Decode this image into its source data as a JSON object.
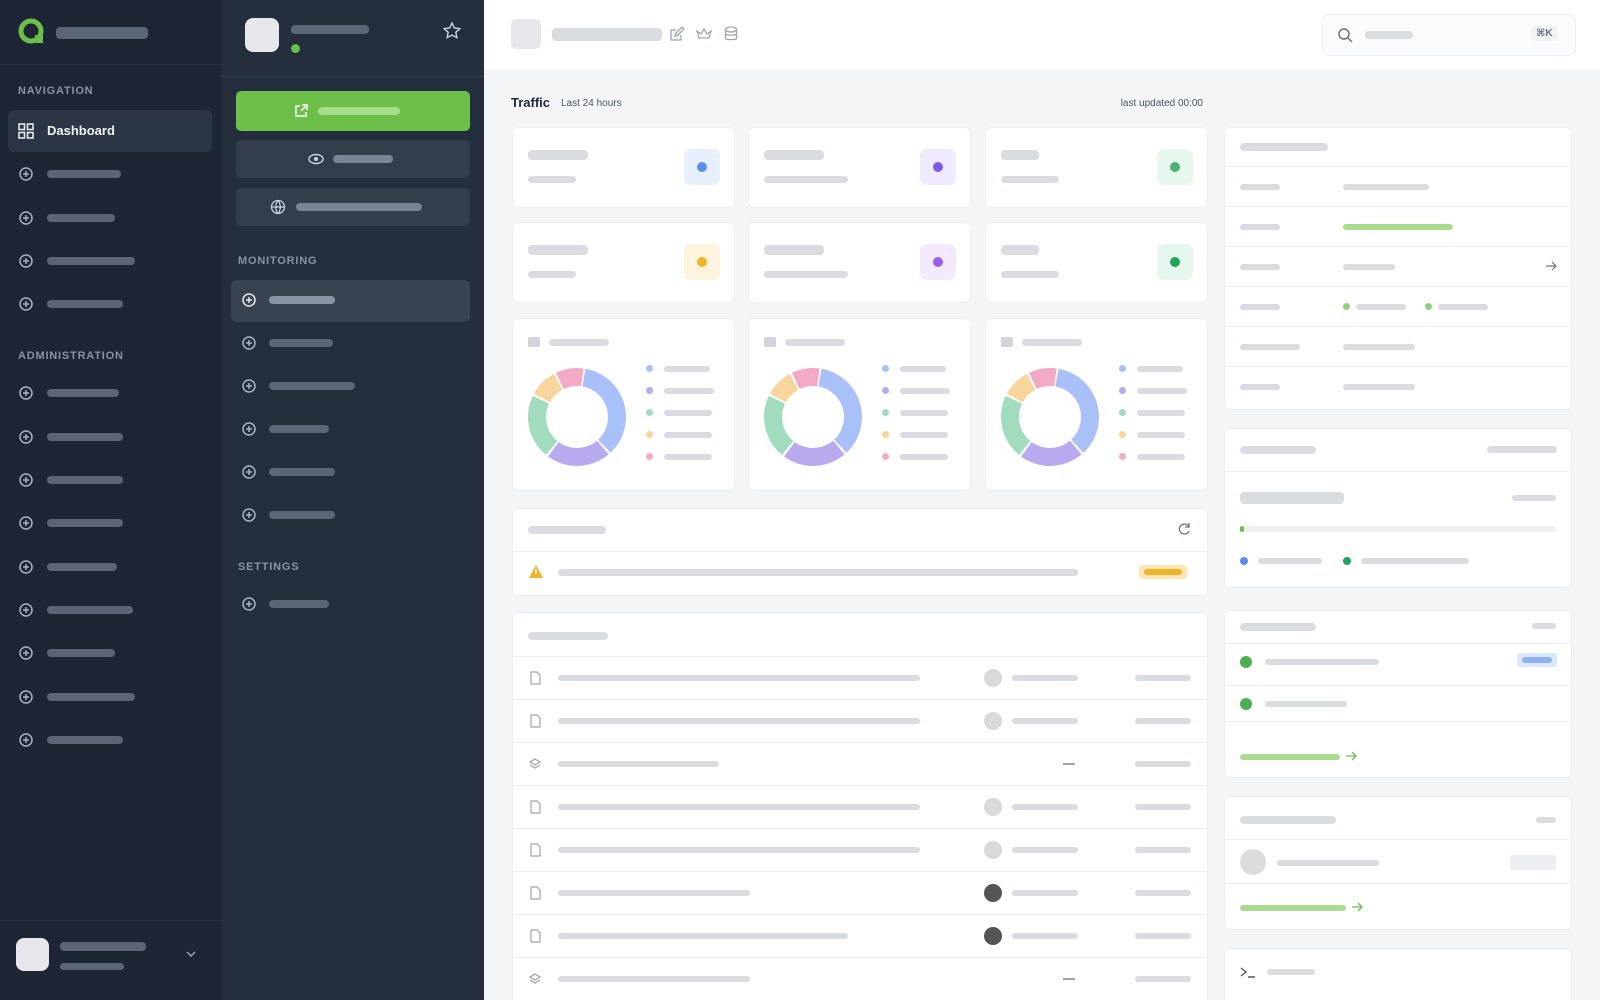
{
  "sidebar": {
    "sections": [
      "NAVIGATION",
      "ADMINISTRATION"
    ],
    "active_item": "Dashboard"
  },
  "panel": {
    "sections": [
      "MONITORING",
      "SETTINGS"
    ]
  },
  "header": {
    "shortcut": "⌘K"
  },
  "traffic": {
    "title": "Traffic",
    "subtitle": "Last 24 hours",
    "updated": "last updated 00:00"
  }
}
